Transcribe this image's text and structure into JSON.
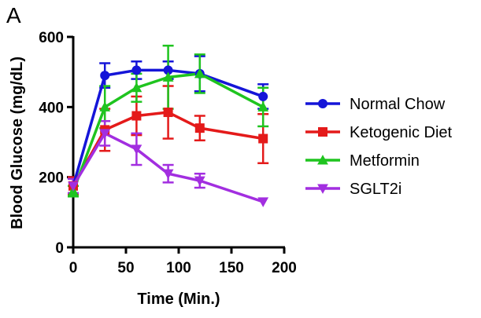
{
  "panel_label": "A",
  "chart_data": {
    "type": "line",
    "title": "",
    "xlabel": "Time (Min.)",
    "ylabel": "Blood Glucose (mg/dL)",
    "xlim": [
      0,
      200
    ],
    "ylim": [
      0,
      600
    ],
    "xticks": [
      0,
      50,
      100,
      150,
      200
    ],
    "yticks": [
      0,
      200,
      400,
      600
    ],
    "x_tick_labels": [
      "0",
      "50",
      "100",
      "150",
      "200"
    ],
    "y_tick_labels": [
      "0",
      "200",
      "400",
      "600"
    ],
    "grid": false,
    "legend_position": "right",
    "series": [
      {
        "name": "Normal Chow",
        "color": "#1515d8",
        "marker": "circle",
        "x": [
          0,
          30,
          60,
          90,
          120,
          180
        ],
        "values": [
          175,
          490,
          505,
          505,
          495,
          430
        ],
        "errors": [
          25,
          35,
          25,
          25,
          50,
          35
        ]
      },
      {
        "name": "Ketogenic Diet",
        "color": "#e41a1a",
        "marker": "square",
        "x": [
          0,
          30,
          60,
          90,
          120,
          180
        ],
        "values": [
          175,
          335,
          375,
          385,
          340,
          310
        ],
        "errors": [
          25,
          60,
          55,
          75,
          35,
          70
        ]
      },
      {
        "name": "Metformin",
        "color": "#1fc41f",
        "marker": "triangle-up",
        "x": [
          0,
          30,
          60,
          90,
          120,
          180
        ],
        "values": [
          160,
          400,
          455,
          485,
          495,
          400
        ],
        "errors": [
          15,
          60,
          40,
          90,
          55,
          55
        ]
      },
      {
        "name": "SGLT2i",
        "color": "#a22ee0",
        "marker": "triangle-down",
        "x": [
          0,
          30,
          60,
          90,
          120,
          180
        ],
        "values": [
          175,
          325,
          280,
          210,
          190,
          130
        ],
        "errors": [
          20,
          35,
          45,
          25,
          20,
          0
        ]
      }
    ]
  }
}
